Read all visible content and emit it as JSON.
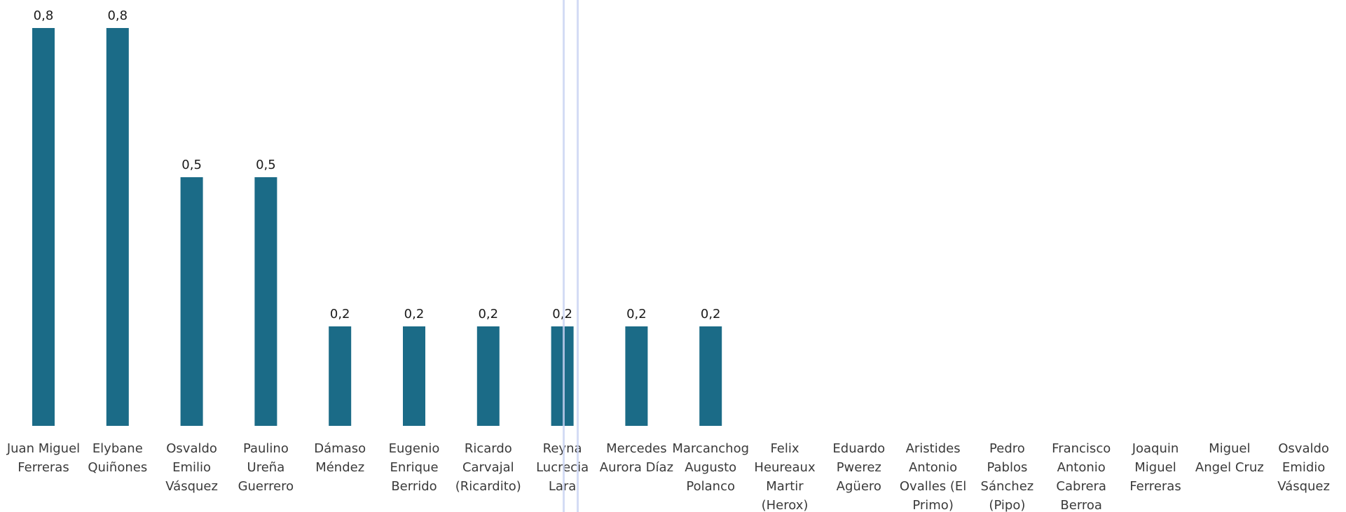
{
  "chart_data": {
    "type": "bar",
    "title": "",
    "xlabel": "",
    "ylabel": "",
    "ylim": [
      0,
      0.8
    ],
    "grid": false,
    "legend": "none",
    "bar_color": "#1b6b87",
    "categories": [
      [
        "Juan Miguel",
        "Ferreras"
      ],
      [
        "Elybane",
        "Quiñones"
      ],
      [
        "Osvaldo",
        "Emilio",
        "Vásquez"
      ],
      [
        "Paulino",
        "Ureña",
        "Guerrero"
      ],
      [
        "Dámaso",
        "Méndez"
      ],
      [
        "Eugenio",
        "Enrique",
        "Berrido"
      ],
      [
        "Ricardo",
        "Carvajal",
        "(Ricardito)"
      ],
      [
        "Reyna",
        "Lucrecia",
        "Lara"
      ],
      [
        "Mercedes",
        "Aurora Díaz"
      ],
      [
        "Marcanchog",
        "Augusto",
        "Polanco"
      ],
      [
        "Felix",
        "Heureaux",
        "Martir",
        "(Herox)"
      ],
      [
        "Eduardo",
        "Pwerez",
        "Agüero"
      ],
      [
        "Aristides",
        "Antonio",
        "Ovalles (El",
        "Primo)"
      ],
      [
        "Pedro",
        "Pablos",
        "Sánchez",
        "(Pipo)"
      ],
      [
        "Francisco",
        "Antonio",
        "Cabrera",
        "Berroa"
      ],
      [
        "Joaquin",
        "Miguel",
        "Ferreras"
      ],
      [
        "Miguel",
        "Angel Cruz"
      ],
      [
        "Osvaldo",
        "Emidio",
        "Vásquez"
      ]
    ],
    "values": [
      0.8,
      0.8,
      0.5,
      0.5,
      0.2,
      0.2,
      0.2,
      0.2,
      0.2,
      0.2,
      null,
      null,
      null,
      null,
      null,
      null,
      null,
      null
    ],
    "value_labels": [
      "0,8",
      "0,8",
      "0,5",
      "0,5",
      "0,2",
      "0,2",
      "0,2",
      "0,2",
      "0,2",
      "0,2",
      "",
      "",
      "",
      "",
      "",
      "",
      "",
      ""
    ]
  }
}
